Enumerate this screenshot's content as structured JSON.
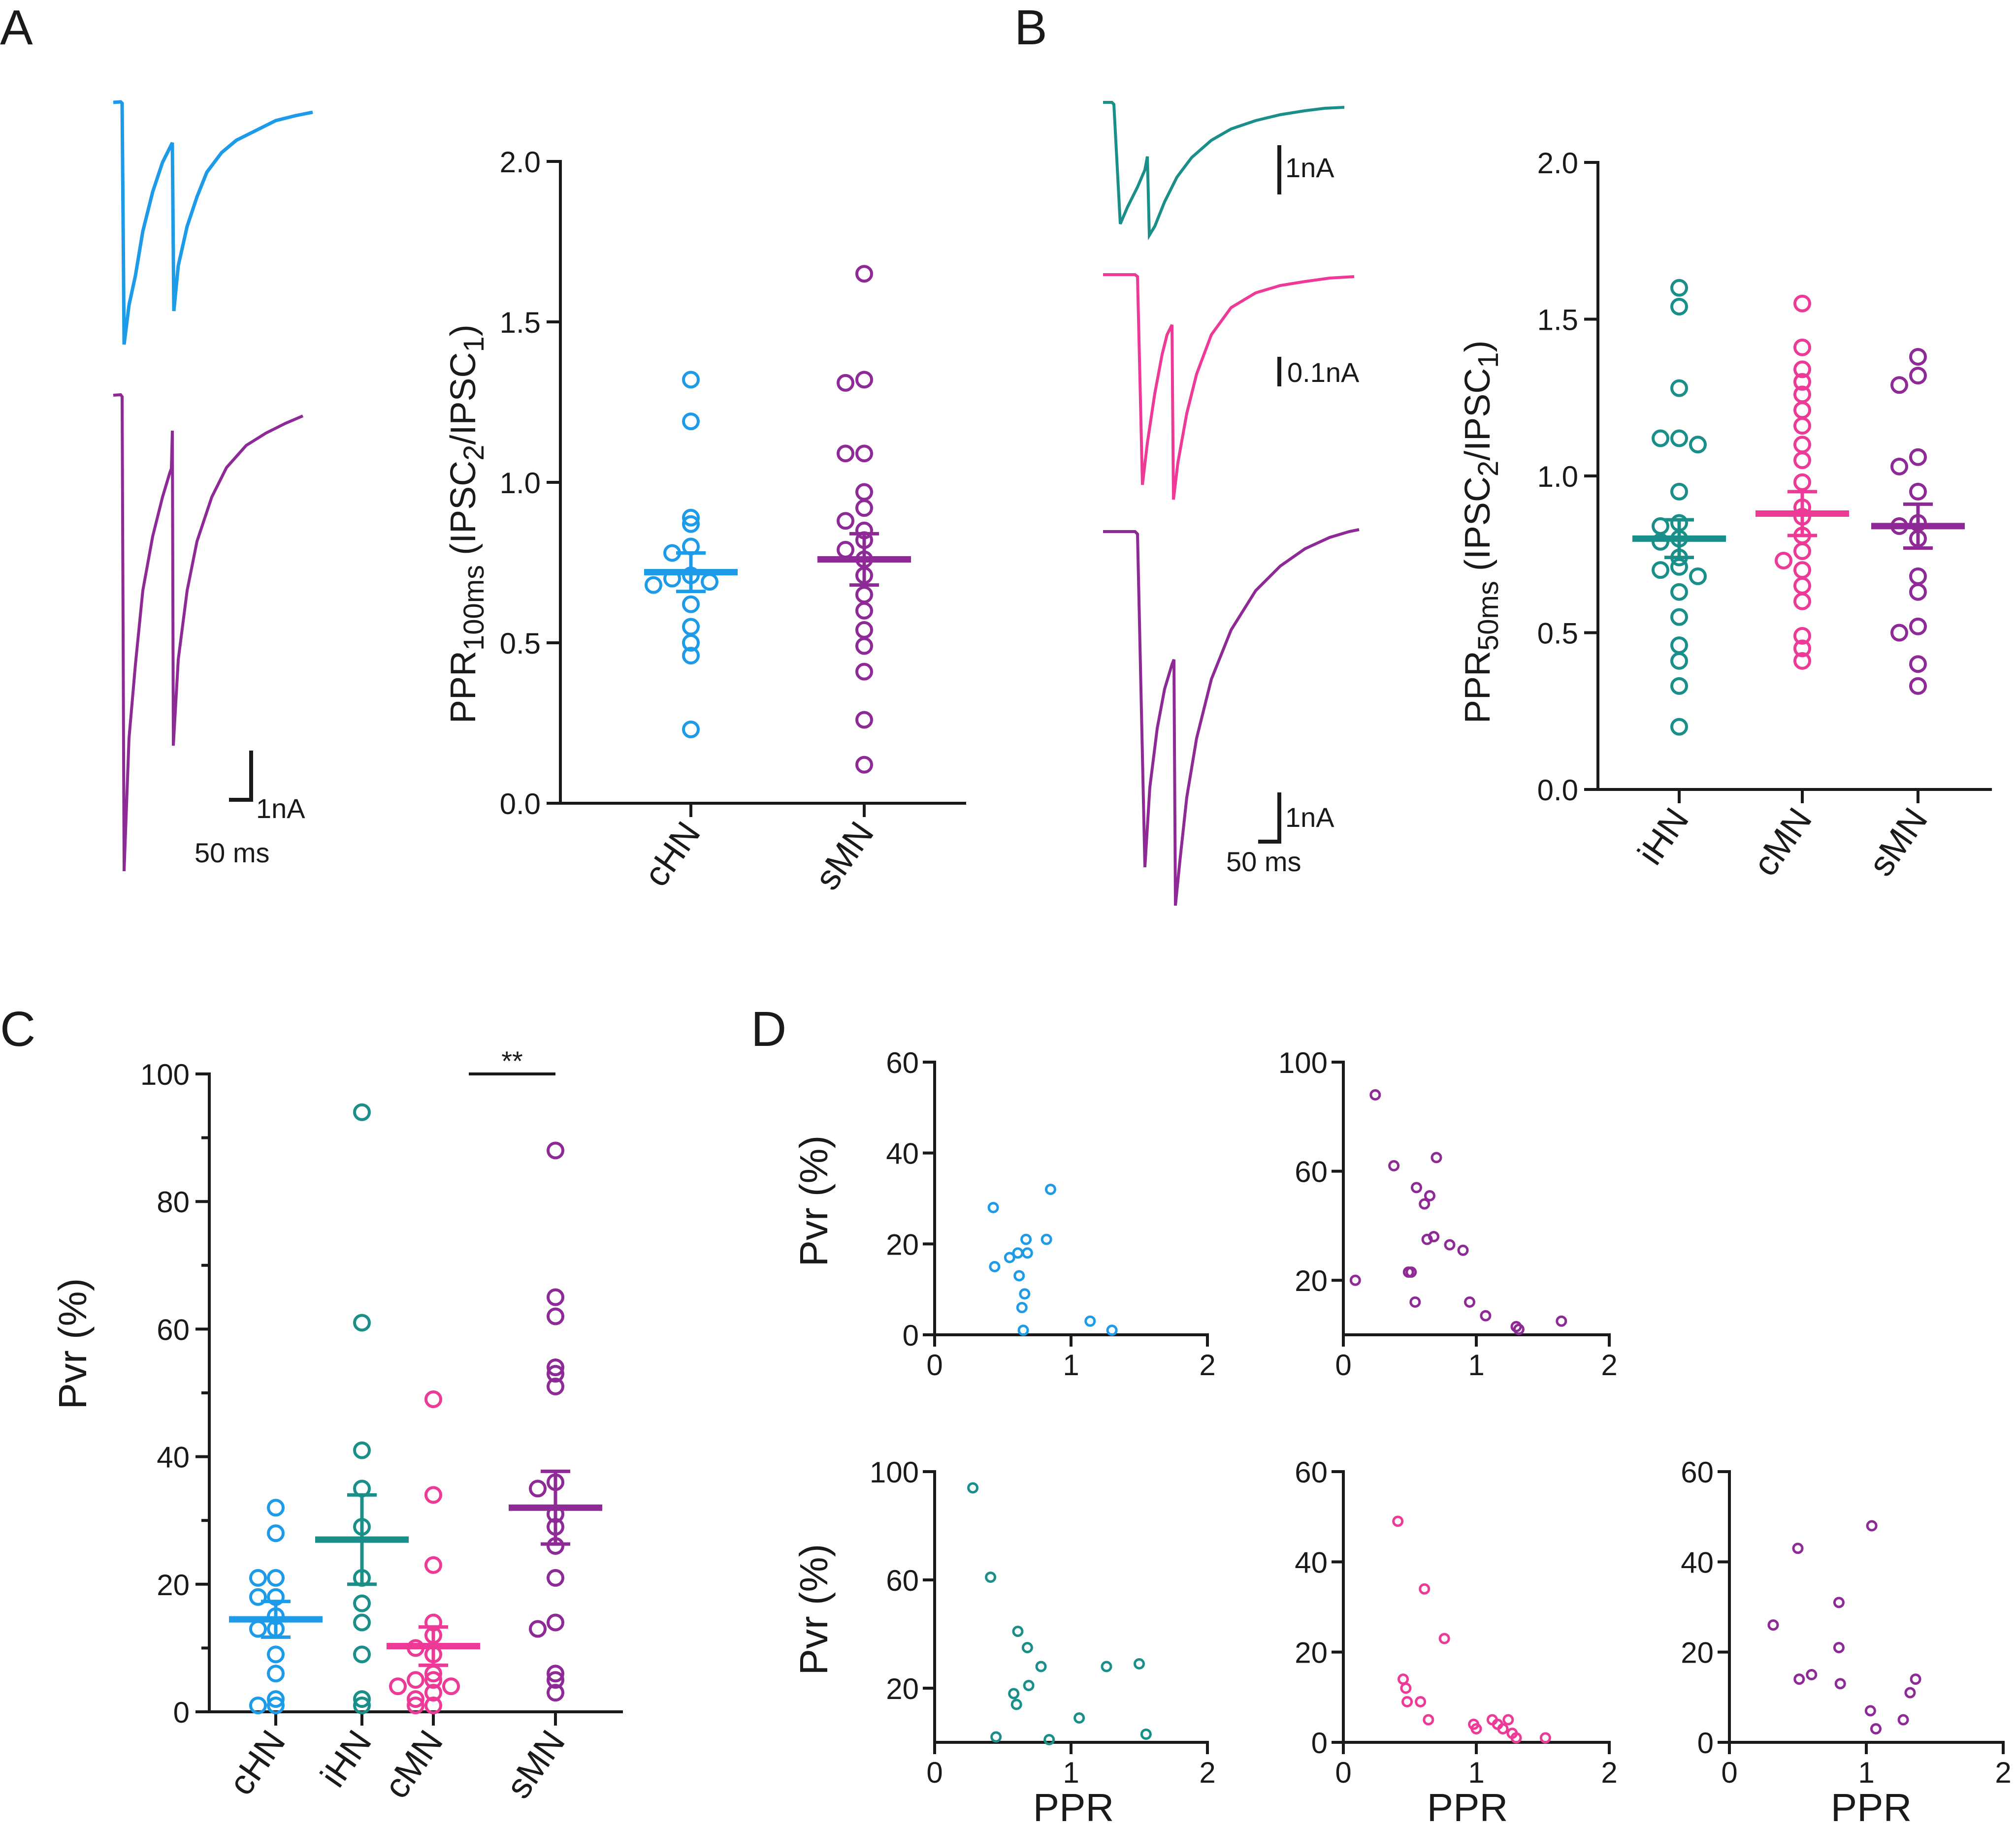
{
  "colors": {
    "blue": "#1e9be8",
    "teal": "#1a8f8a",
    "pink": "#ec3a96",
    "purple": "#8e2a96",
    "axis": "#1a1a1a"
  },
  "panel_labels": {
    "a": "A",
    "b": "B",
    "c": "C",
    "d": "D"
  },
  "scale_bars": {
    "a_amp": "1nA",
    "a_time": "50 ms",
    "b_top": "1nA",
    "b_mid": "0.1nA",
    "b_bottom_amp": "1nA",
    "b_time": "50 ms"
  },
  "significance": {
    "c": "**"
  },
  "chart_data": [
    {
      "id": "A",
      "type": "scatter",
      "title": "",
      "ylabel_main": "PPR",
      "ylabel_sub": "100ms",
      "ylabel_rest": " (IPSC",
      "ylabel_sub2": "2",
      "ylabel_rest2": "/IPSC",
      "ylabel_sub3": "1",
      "ylabel_rest3": ")",
      "ylim": [
        0,
        2
      ],
      "yticks": [
        "0.0",
        "0.5",
        "1.0",
        "1.5",
        "2.0"
      ],
      "categories": [
        "cHN",
        "sMN"
      ],
      "series": [
        {
          "name": "cHN",
          "color": "blue",
          "mean": 0.72,
          "sem": 0.06,
          "values": [
            1.32,
            1.19,
            0.89,
            0.87,
            0.8,
            0.78,
            0.71,
            0.7,
            0.69,
            0.68,
            0.62,
            0.55,
            0.5,
            0.46,
            0.23
          ]
        },
        {
          "name": "sMN",
          "color": "purple",
          "mean": 0.76,
          "sem": 0.08,
          "values": [
            1.65,
            1.32,
            1.31,
            1.09,
            1.09,
            0.97,
            0.92,
            0.85,
            0.82,
            0.79,
            0.76,
            0.71,
            0.65,
            0.6,
            0.54,
            0.49,
            0.41,
            0.26,
            0.12,
            0.88
          ]
        }
      ]
    },
    {
      "id": "B",
      "type": "scatter",
      "ylabel_main": "PPR",
      "ylabel_sub": "50ms",
      "ylabel_rest": " (IPSC",
      "ylabel_sub2": "2",
      "ylabel_rest2": "/IPSC",
      "ylabel_sub3": "1",
      "ylabel_rest3": ")",
      "ylim": [
        0,
        2
      ],
      "yticks": [
        "0.0",
        "0.5",
        "1.0",
        "1.5",
        "2.0"
      ],
      "categories": [
        "iHN",
        "cMN",
        "sMN"
      ],
      "series": [
        {
          "name": "iHN",
          "color": "teal",
          "mean": 0.8,
          "sem": 0.06,
          "values": [
            1.6,
            1.54,
            1.28,
            1.12,
            1.12,
            1.1,
            0.95,
            0.85,
            0.84,
            0.79,
            0.71,
            0.7,
            0.68,
            0.63,
            0.55,
            0.46,
            0.41,
            0.33,
            0.2,
            0.8,
            0.74
          ]
        },
        {
          "name": "cMN",
          "color": "pink",
          "mean": 0.88,
          "sem": 0.07,
          "values": [
            1.55,
            1.41,
            1.34,
            1.3,
            1.26,
            1.21,
            1.16,
            1.1,
            1.05,
            0.98,
            0.9,
            0.87,
            0.81,
            0.76,
            0.7,
            0.65,
            0.6,
            0.49,
            0.45,
            0.41,
            0.73
          ]
        },
        {
          "name": "sMN",
          "color": "purple",
          "mean": 0.84,
          "sem": 0.07,
          "values": [
            1.38,
            1.32,
            1.29,
            1.06,
            1.03,
            0.95,
            0.85,
            0.84,
            0.8,
            0.68,
            0.63,
            0.52,
            0.5,
            0.4,
            0.33
          ]
        }
      ]
    },
    {
      "id": "C",
      "type": "scatter",
      "ylabel": "Pvr (%)",
      "ylim": [
        0,
        100
      ],
      "yticks": [
        "0",
        "20",
        "40",
        "60",
        "80",
        "100"
      ],
      "categories": [
        "cHN",
        "iHN",
        "cMN",
        "sMN"
      ],
      "series": [
        {
          "name": "cHN",
          "color": "blue",
          "mean": 14.5,
          "sem": 2.8,
          "values": [
            32,
            28,
            21,
            21,
            18,
            18,
            15,
            13,
            13,
            9,
            6,
            2,
            1,
            1
          ]
        },
        {
          "name": "iHN",
          "color": "teal",
          "mean": 27,
          "sem": 7,
          "values": [
            94,
            61,
            41,
            35,
            29,
            21,
            17,
            14,
            9,
            2,
            1
          ]
        },
        {
          "name": "cMN",
          "color": "pink",
          "mean": 10.3,
          "sem": 3,
          "values": [
            49,
            34,
            23,
            14,
            12,
            10,
            9,
            6,
            5,
            5,
            4,
            4,
            3,
            2,
            1,
            1
          ]
        },
        {
          "name": "sMN",
          "color": "purple",
          "mean": 32,
          "sem": 5.7,
          "values": [
            88,
            65,
            62,
            54,
            53,
            51,
            36,
            35,
            31,
            29,
            26,
            21,
            14,
            13,
            6,
            5,
            3
          ]
        }
      ]
    },
    {
      "id": "D1",
      "type": "scatter",
      "color": "blue",
      "ylabel": "Pvr (%)",
      "xlabel": "",
      "xlim": [
        0,
        2
      ],
      "ylim": [
        0,
        60
      ],
      "xticks": [
        "0",
        "1",
        "2"
      ],
      "yticks": [
        "0",
        "20",
        "40",
        "60"
      ],
      "points": [
        [
          0.43,
          28
        ],
        [
          0.44,
          15
        ],
        [
          0.55,
          17
        ],
        [
          0.61,
          18
        ],
        [
          0.62,
          13
        ],
        [
          0.67,
          21
        ],
        [
          0.68,
          18
        ],
        [
          0.66,
          9
        ],
        [
          0.64,
          6
        ],
        [
          0.65,
          1
        ],
        [
          0.82,
          21
        ],
        [
          0.85,
          32
        ],
        [
          1.14,
          3
        ],
        [
          1.3,
          1
        ]
      ]
    },
    {
      "id": "D2",
      "type": "scatter",
      "color": "purple",
      "ylabel": "",
      "xlabel": "",
      "xlim": [
        0,
        2
      ],
      "ylim": [
        0,
        100
      ],
      "xticks": [
        "0",
        "1",
        "2"
      ],
      "yticks": [
        "20",
        "60",
        "100"
      ],
      "points": [
        [
          0.24,
          88
        ],
        [
          0.09,
          20
        ],
        [
          0.38,
          62
        ],
        [
          0.49,
          23
        ],
        [
          0.51,
          23
        ],
        [
          0.54,
          12
        ],
        [
          0.55,
          54
        ],
        [
          0.61,
          48
        ],
        [
          0.63,
          35
        ],
        [
          0.65,
          51
        ],
        [
          0.68,
          36
        ],
        [
          0.7,
          65
        ],
        [
          0.8,
          33
        ],
        [
          0.9,
          31
        ],
        [
          0.95,
          12
        ],
        [
          1.07,
          7
        ],
        [
          1.3,
          3
        ],
        [
          1.32,
          2
        ],
        [
          1.64,
          5
        ]
      ]
    },
    {
      "id": "D3",
      "type": "scatter",
      "color": "teal",
      "ylabel": "Pvr (%)",
      "xlabel": "PPR",
      "xlim": [
        0,
        2
      ],
      "ylim": [
        0,
        100
      ],
      "xticks": [
        "0",
        "1",
        "2"
      ],
      "yticks": [
        "20",
        "60",
        "100"
      ],
      "points": [
        [
          0.28,
          94
        ],
        [
          0.41,
          61
        ],
        [
          0.45,
          2
        ],
        [
          0.58,
          18
        ],
        [
          0.6,
          14
        ],
        [
          0.61,
          41
        ],
        [
          0.68,
          35
        ],
        [
          0.69,
          21
        ],
        [
          0.78,
          28
        ],
        [
          0.84,
          1
        ],
        [
          1.06,
          9
        ],
        [
          1.26,
          28
        ],
        [
          1.5,
          29
        ],
        [
          1.55,
          3
        ]
      ]
    },
    {
      "id": "D4",
      "type": "scatter",
      "color": "pink",
      "ylabel": "",
      "xlabel": "PPR",
      "xlim": [
        0,
        2
      ],
      "ylim": [
        0,
        60
      ],
      "xticks": [
        "0",
        "1",
        "2"
      ],
      "yticks": [
        "0",
        "20",
        "40",
        "60"
      ],
      "points": [
        [
          0.41,
          49
        ],
        [
          0.45,
          14
        ],
        [
          0.47,
          12
        ],
        [
          0.48,
          9
        ],
        [
          0.58,
          9
        ],
        [
          0.61,
          34
        ],
        [
          0.64,
          5
        ],
        [
          0.76,
          23
        ],
        [
          0.98,
          4
        ],
        [
          1.0,
          3
        ],
        [
          1.12,
          5
        ],
        [
          1.16,
          4
        ],
        [
          1.2,
          3
        ],
        [
          1.24,
          5
        ],
        [
          1.27,
          2
        ],
        [
          1.3,
          1
        ],
        [
          1.52,
          1
        ]
      ]
    },
    {
      "id": "D5",
      "type": "scatter",
      "color": "purple",
      "ylabel": "",
      "xlabel": "PPR",
      "xlim": [
        0,
        2
      ],
      "ylim": [
        0,
        60
      ],
      "xticks": [
        "0",
        "1",
        "2"
      ],
      "yticks": [
        "0",
        "20",
        "40",
        "60"
      ],
      "points": [
        [
          0.32,
          26
        ],
        [
          0.5,
          43
        ],
        [
          0.51,
          14
        ],
        [
          0.6,
          15
        ],
        [
          0.8,
          31
        ],
        [
          0.8,
          21
        ],
        [
          0.81,
          13
        ],
        [
          1.03,
          7
        ],
        [
          1.04,
          48
        ],
        [
          1.07,
          3
        ],
        [
          1.27,
          5
        ],
        [
          1.32,
          11
        ],
        [
          1.36,
          14
        ]
      ]
    }
  ]
}
